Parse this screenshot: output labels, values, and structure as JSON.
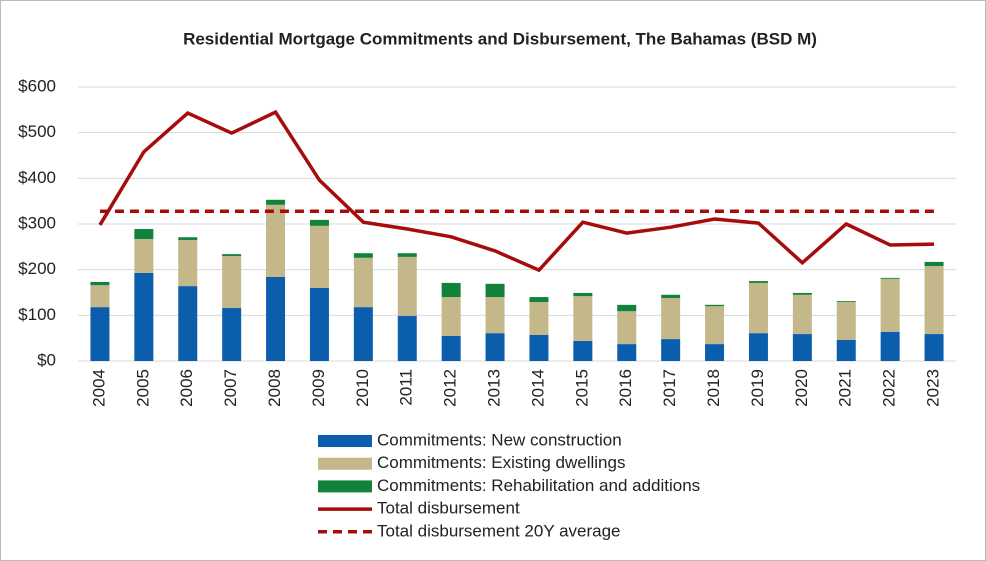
{
  "chart_data": {
    "type": "bar",
    "stacked": true,
    "title": "Residential Mortgage Commitments and Disbursement, The Bahamas (BSD M)",
    "categories": [
      "2004",
      "2005",
      "2006",
      "2007",
      "2008",
      "2009",
      "2010",
      "2011",
      "2012",
      "2013",
      "2014",
      "2015",
      "2016",
      "2017",
      "2018",
      "2019",
      "2020",
      "2021",
      "2022",
      "2023"
    ],
    "series": [
      {
        "name": "Commitments: New construction",
        "type": "bar",
        "color": "#0a5eac",
        "values": [
          118,
          193,
          164,
          116,
          184,
          160,
          118,
          99,
          55,
          61,
          57,
          44,
          37,
          48,
          37,
          61,
          59,
          46,
          64,
          59
        ]
      },
      {
        "name": "Commitments: Existing dwellings",
        "type": "bar",
        "color": "#c4b78a",
        "values": [
          48,
          74,
          101,
          114,
          158,
          136,
          108,
          129,
          85,
          79,
          72,
          98,
          72,
          90,
          83,
          110,
          86,
          83,
          116,
          149
        ]
      },
      {
        "name": "Commitments: Rehabilitation and additions",
        "type": "bar",
        "color": "#12813a",
        "values": [
          7,
          22,
          6,
          4,
          11,
          13,
          10,
          8,
          31,
          29,
          11,
          7,
          14,
          7,
          3,
          4,
          4,
          2,
          2,
          9
        ]
      },
      {
        "name": "Total disbursement",
        "type": "line",
        "color": "#a50d0d",
        "values": [
          298,
          458,
          543,
          499,
          545,
          396,
          304,
          289,
          272,
          241,
          199,
          304,
          280,
          293,
          311,
          302,
          215,
          300,
          254,
          256
        ]
      },
      {
        "name": "Total disbursement 20Y average",
        "type": "line",
        "dashed": true,
        "color": "#a50d0d",
        "values": [
          328,
          328,
          328,
          328,
          328,
          328,
          328,
          328,
          328,
          328,
          328,
          328,
          328,
          328,
          328,
          328,
          328,
          328,
          328,
          328
        ]
      }
    ],
    "ylim": [
      0,
      600
    ],
    "yticks": [
      {
        "value": 0,
        "label": "$0"
      },
      {
        "value": 100,
        "label": "$100"
      },
      {
        "value": 200,
        "label": "$200"
      },
      {
        "value": 300,
        "label": "$300"
      },
      {
        "value": 400,
        "label": "$400"
      },
      {
        "value": 500,
        "label": "$500"
      },
      {
        "value": 600,
        "label": "$600"
      }
    ],
    "grid": true,
    "legend": "bottom"
  }
}
